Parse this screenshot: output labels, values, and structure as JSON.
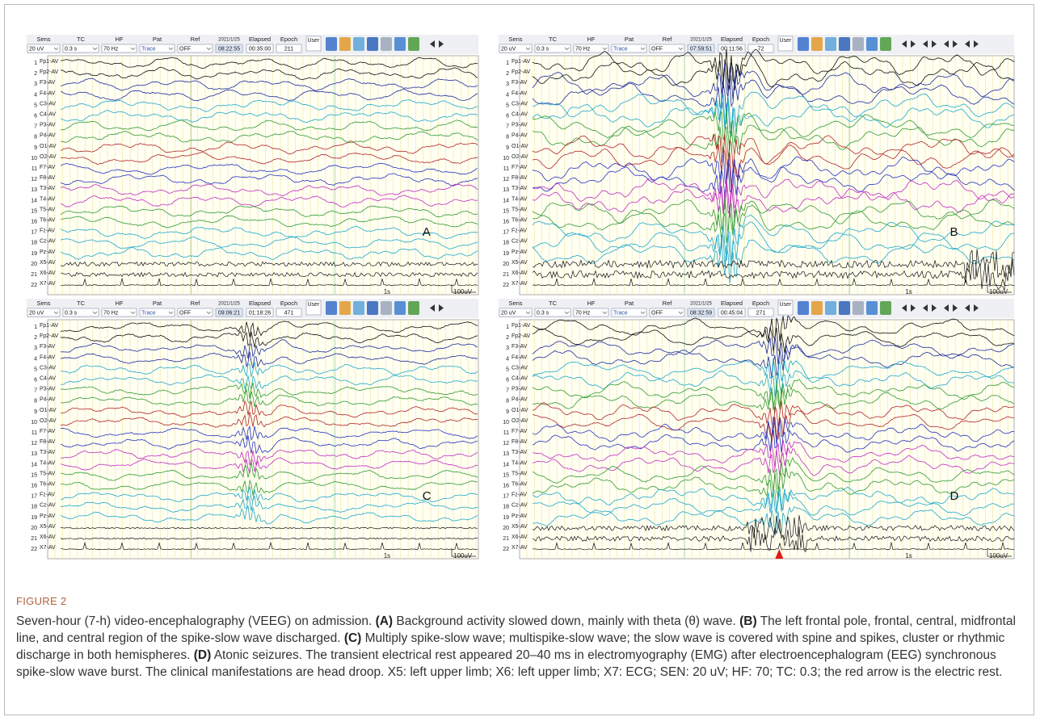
{
  "figure": {
    "panels": [
      {
        "letter": "A",
        "toolbar": {
          "labels": [
            "Sens",
            "TC",
            "HF",
            "Pat",
            "Ref",
            "2021/1/25",
            "Elapsed",
            "Epoch"
          ],
          "values": [
            "20 uV",
            "0.3 s",
            "70 Hz",
            "Trace",
            "OFF",
            "08:22:55",
            "00:35:00",
            "211"
          ],
          "user": "User"
        },
        "time_scale": "1s",
        "amp_scale": "100uV"
      },
      {
        "letter": "B",
        "toolbar": {
          "labels": [
            "Sens",
            "TC",
            "HF",
            "Pat",
            "Ref",
            "2021/1/25",
            "Elapsed",
            "Epoch"
          ],
          "values": [
            "20 uV",
            "0.3 s",
            "70 Hz",
            "Trace",
            "OFF",
            "07:59:51",
            "00:11:56",
            "72"
          ],
          "user": "User"
        },
        "time_scale": "1s",
        "amp_scale": "100uV"
      },
      {
        "letter": "C",
        "toolbar": {
          "labels": [
            "Sens",
            "TC",
            "HF",
            "Pat",
            "Ref",
            "2021/1/25",
            "Elapsed",
            "Epoch"
          ],
          "values": [
            "20 uV",
            "0.3 s",
            "70 Hz",
            "Trace",
            "OFF",
            "09:06:21",
            "01:18:26",
            "471"
          ],
          "user": "User"
        },
        "time_scale": "1s",
        "amp_scale": "100uV"
      },
      {
        "letter": "D",
        "toolbar": {
          "labels": [
            "Sens",
            "TC",
            "HF",
            "Pat",
            "Ref",
            "2021/1/25",
            "Elapsed",
            "Epoch"
          ],
          "values": [
            "20 uV",
            "0.3 s",
            "70 Hz",
            "Trace",
            "OFF",
            "08:32:59",
            "00:45:04",
            "271"
          ],
          "user": "User"
        },
        "time_scale": "1s",
        "amp_scale": "100uV"
      }
    ],
    "channels": {
      "numbers": [
        "1",
        "2",
        "3",
        "4",
        "5",
        "6",
        "7",
        "8",
        "9",
        "10",
        "11",
        "12",
        "13",
        "14",
        "15",
        "16",
        "17",
        "18",
        "19",
        "20",
        "21",
        "22"
      ],
      "labels": [
        "Fp1-AV",
        "Fp2-AV",
        "F3-AV",
        "F4-AV",
        "C3-AV",
        "C4-AV",
        "P3-AV",
        "P4-AV",
        "O1-AV",
        "O2-AV",
        "F7-AV",
        "F8-AV",
        "T3-AV",
        "T4-AV",
        "T5-AV",
        "T6-AV",
        "Fz-AV",
        "Cz-AV",
        "Pz-AV",
        "X5-AV",
        "X6-AV",
        "X7-AV"
      ]
    }
  },
  "caption": {
    "label": "FIGURE 2",
    "segments": [
      {
        "bold": false,
        "text": "Seven-hour (7-h) video-encephalography (VEEG) on admission. "
      },
      {
        "bold": true,
        "text": "(A)"
      },
      {
        "bold": false,
        "text": " Background activity slowed down, mainly with theta (θ) wave. "
      },
      {
        "bold": true,
        "text": "(B)"
      },
      {
        "bold": false,
        "text": " The left frontal pole, frontal, central, midfrontal line, and central region of the spike-slow wave discharged. "
      },
      {
        "bold": true,
        "text": "(C)"
      },
      {
        "bold": false,
        "text": " Multiply spike-slow wave; multispike-slow wave; the slow wave is covered with spine and spikes, cluster or rhythmic discharge in both hemispheres. "
      },
      {
        "bold": true,
        "text": "(D)"
      },
      {
        "bold": false,
        "text": " Atonic seizures. The transient electrical rest appeared 20–40 ms in electromyography (EMG) after electroencephalogram (EEG) synchronous spike-slow wave burst. The clinical manifestations are head droop. X5: left upper limb; X6: left upper limb; X7: ECG; SEN: 20 uV; HF: 70; TC: 0.3; the red arrow is the electric rest."
      }
    ]
  }
}
